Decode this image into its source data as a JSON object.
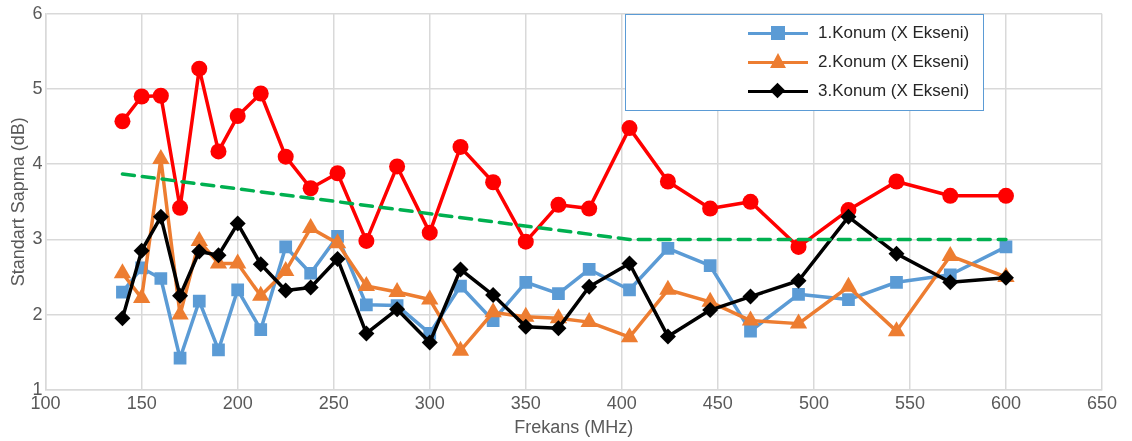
{
  "chart_data": {
    "type": "line",
    "xlabel": "Frekans (MHz)",
    "ylabel": "Standart Sapma (dB)",
    "x": [
      140,
      150,
      160,
      170,
      180,
      190,
      200,
      212,
      225,
      238,
      252,
      267,
      283,
      300,
      316,
      333,
      350,
      367,
      383,
      404,
      424,
      446,
      467,
      492,
      518,
      543,
      571,
      600
    ],
    "xlim": [
      100,
      650
    ],
    "xticks": [
      100,
      150,
      200,
      250,
      300,
      350,
      400,
      450,
      500,
      550,
      600,
      650
    ],
    "ylim": [
      1,
      6
    ],
    "yticks": [
      1,
      2,
      3,
      4,
      5,
      6
    ],
    "grid": true,
    "legend": "top right",
    "line_style": "solid",
    "series": [
      {
        "color": "#ff0000",
        "marker": "circle",
        "values": [
          4.57,
          4.9,
          4.91,
          3.42,
          5.27,
          4.17,
          4.64,
          4.94,
          4.1,
          3.68,
          3.88,
          2.98,
          3.97,
          3.09,
          4.23,
          3.76,
          2.97,
          3.46,
          3.41,
          4.48,
          3.77,
          3.41,
          3.5,
          2.9,
          3.39,
          3.77,
          3.58,
          3.58
        ]
      },
      {
        "name": "1.Konum (X Ekseni)",
        "color": "#5b9bd5",
        "marker": "square",
        "values": [
          2.3,
          2.62,
          2.48,
          1.42,
          2.18,
          1.53,
          2.33,
          1.8,
          2.9,
          2.55,
          3.04,
          2.13,
          2.12,
          1.75,
          2.38,
          1.92,
          2.43,
          2.28,
          2.6,
          2.33,
          2.88,
          2.65,
          1.78,
          2.27,
          2.2,
          2.43,
          2.53,
          2.9
        ]
      },
      {
        "name": "2.Konum (X Ekseni)",
        "color": "#ed7d31",
        "marker": "triangle",
        "values": [
          2.55,
          2.22,
          4.07,
          2.0,
          2.98,
          2.68,
          2.68,
          2.25,
          2.58,
          3.15,
          2.95,
          2.38,
          2.3,
          2.2,
          1.52,
          2.03,
          1.97,
          1.95,
          1.9,
          1.7,
          2.33,
          2.17,
          1.92,
          1.88,
          2.37,
          1.78,
          2.78,
          2.5
        ]
      },
      {
        "name": "3.Konum (X Ekseni)",
        "color": "#000000",
        "marker": "diamond",
        "values": [
          1.95,
          2.85,
          3.3,
          2.25,
          2.84,
          2.79,
          3.21,
          2.67,
          2.32,
          2.36,
          2.74,
          1.75,
          2.07,
          1.63,
          2.6,
          2.26,
          1.84,
          1.82,
          2.37,
          2.68,
          1.71,
          2.06,
          2.24,
          2.45,
          3.3,
          2.81,
          2.43,
          2.49
        ]
      },
      {
        "color": "#00b050",
        "marker": "none",
        "line_style": "dashed",
        "x": [
          140,
          404,
          600
        ],
        "values": [
          3.87,
          3.0,
          3.0
        ]
      }
    ]
  }
}
